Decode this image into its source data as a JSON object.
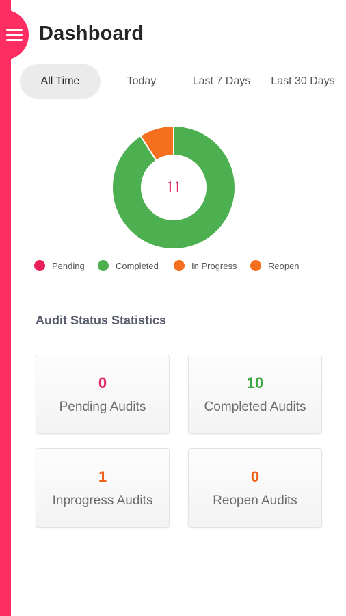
{
  "header": {
    "title": "Dashboard",
    "menu_icon": "hamburger-menu-icon"
  },
  "tabs": [
    {
      "label": "All Time",
      "active": true
    },
    {
      "label": "Today",
      "active": false
    },
    {
      "label": "Last 7 Days",
      "active": false
    },
    {
      "label": "Last 30 Days",
      "active": false
    }
  ],
  "chart_data": {
    "type": "pie",
    "center_label": "11",
    "categories": [
      "Pending",
      "Completed",
      "In Progress",
      "Reopen"
    ],
    "values": [
      0,
      10,
      1,
      0
    ],
    "colors": [
      "#ea1f5a",
      "#4caf50",
      "#f46f1e",
      "#f46f1e"
    ]
  },
  "legend": [
    {
      "label": "Pending",
      "color": "#ea1f5a"
    },
    {
      "label": "Completed",
      "color": "#4caf50"
    },
    {
      "label": "In Progress",
      "color": "#f46f1e"
    },
    {
      "label": "Reopen",
      "color": "#f46f1e"
    }
  ],
  "section_title": "Audit Status Statistics",
  "cards": [
    {
      "value": "0",
      "label": "Pending Audits",
      "color": "#e0255e"
    },
    {
      "value": "10",
      "label": "Completed Audits",
      "color": "#3aa63f"
    },
    {
      "value": "1",
      "label": "Inprogress Audits",
      "color": "#f0621c"
    },
    {
      "value": "0",
      "label": "Reopen Audits",
      "color": "#f0621c"
    }
  ]
}
